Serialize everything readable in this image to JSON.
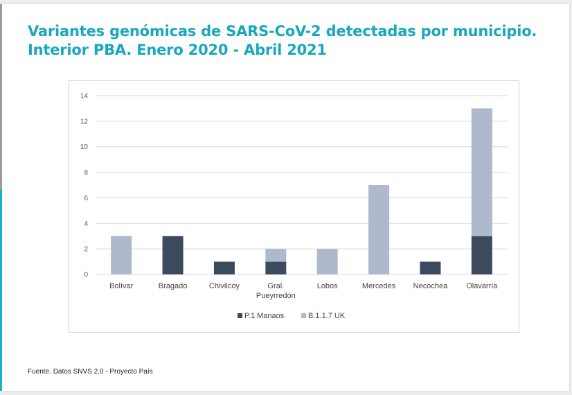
{
  "title_line1": "Variantes genómicas de SARS-CoV-2 detectadas por municipio.",
  "title_line2": "Interior PBA. Enero 2020 - Abril 2021",
  "source": "Fuente. Datos SNVS 2.0 - Proyecto País",
  "colors": {
    "title": "#1aa7bd",
    "p1": "#3c4a5e",
    "b117": "#aeb9cb",
    "grid": "#d9d9d9"
  },
  "chart_data": {
    "type": "bar",
    "stacked": true,
    "categories": [
      "Bolívar",
      "Bragado",
      "Chivilcoy",
      "Gral.\nPueyrredón",
      "Lobos",
      "Mercedes",
      "Necochea",
      "Olavarría"
    ],
    "series": [
      {
        "name": "P.1 Manaos",
        "color": "#3c4a5e",
        "values": [
          0,
          3,
          1,
          1,
          0,
          0,
          1,
          3
        ]
      },
      {
        "name": "B.1.1.7 UK",
        "color": "#aeb9cb",
        "values": [
          3,
          0,
          0,
          1,
          2,
          7,
          0,
          10
        ]
      }
    ],
    "ylim": [
      0,
      14
    ],
    "yticks": [
      0,
      2,
      4,
      6,
      8,
      10,
      12,
      14
    ],
    "grid": true,
    "legend": "bottom"
  }
}
